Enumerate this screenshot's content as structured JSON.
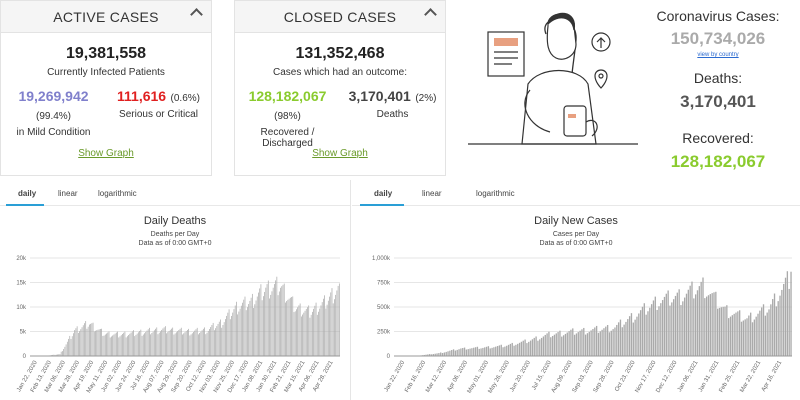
{
  "active": {
    "title": "ACTIVE CASES",
    "total": "19,381,558",
    "subtitle": "Currently Infected Patients",
    "mild": {
      "value": "19,269,942",
      "pct": "(99.4%)",
      "label": "in Mild Condition",
      "color": "#8080cc"
    },
    "serious": {
      "value": "111,616",
      "pct": "(0.6%)",
      "label": "Serious or Critical",
      "color": "#e02020"
    },
    "show_graph": "Show Graph"
  },
  "closed": {
    "title": "CLOSED CASES",
    "total": "131,352,468",
    "subtitle": "Cases which had an outcome:",
    "recovered": {
      "value": "128,182,067",
      "pct": "(98%)",
      "label": "Recovered / Discharged",
      "color": "#8acb2e"
    },
    "deaths": {
      "value": "3,170,401",
      "pct": "(2%)",
      "label": "Deaths",
      "color": "#444444"
    },
    "show_graph": "Show Graph"
  },
  "summary": {
    "cases_label": "Coronavirus Cases:",
    "cases_value": "150,734,026",
    "cases_color": "#aaaaaa",
    "view_by_country": "view by country",
    "deaths_label": "Deaths:",
    "deaths_value": "3,170,401",
    "deaths_color": "#555555",
    "recovered_label": "Recovered:",
    "recovered_value": "128,182,067",
    "recovered_color": "#8acb2e"
  },
  "tabs": {
    "daily": "daily",
    "linear": "linear",
    "logarithmic": "logarithmic"
  },
  "chart_data": [
    {
      "type": "bar",
      "title": "Daily Deaths",
      "subtitle": "Deaths per Day",
      "note": "Data as of 0:00 GMT+0",
      "ylim": [
        0,
        20000
      ],
      "yticks": [
        "0",
        "5k",
        "10k",
        "15k",
        "20k"
      ],
      "categories": [
        "Jan 22, 2020",
        "Feb 13, 2020",
        "Mar 06, 2020",
        "Mar 28, 2020",
        "Apr 19, 2020",
        "May 11, 2020",
        "Jun 02, 2020",
        "Jun 24, 2020",
        "Jul 16, 2020",
        "Aug 07, 2020",
        "Aug 29, 2020",
        "Sep 20, 2020",
        "Oct 12, 2020",
        "Nov 03, 2020",
        "Nov 25, 2020",
        "Dec 17, 2020",
        "Jan 08, 2021",
        "Jan 30, 2021",
        "Feb 21, 2021",
        "Mar 15, 2021",
        "Apr 06, 2021",
        "Apr 28, 2021"
      ],
      "values": [
        10,
        30,
        400,
        5500,
        7000,
        4800,
        4600,
        4900,
        5300,
        5700,
        5400,
        5200,
        5600,
        7200,
        10500,
        11800,
        14500,
        15200,
        10500,
        9500,
        11500,
        14800
      ],
      "bar_color": "#aaaaaa",
      "grid": true
    },
    {
      "type": "bar",
      "title": "Daily New Cases",
      "subtitle": "Cases per Day",
      "note": "Data as of 0:00 GMT+0",
      "ylim": [
        0,
        1000000
      ],
      "yticks": [
        "0",
        "250k",
        "500k",
        "750k",
        "1,000k"
      ],
      "categories": [
        "Jan 22, 2020",
        "Feb 16, 2020",
        "Mar 12, 2020",
        "Apr 06, 2020",
        "May 01, 2020",
        "May 26, 2020",
        "Jun 20, 2020",
        "Jul 15, 2020",
        "Aug 09, 2020",
        "Sep 03, 2020",
        "Sep 28, 2020",
        "Oct 23, 2020",
        "Nov 17, 2020",
        "Dec 12, 2020",
        "Jan 06, 2021",
        "Jan 31, 2021",
        "Feb 25, 2021",
        "Mar 22, 2021",
        "Apr 16, 2021"
      ],
      "values": [
        500,
        2000,
        30000,
        80000,
        90000,
        110000,
        160000,
        230000,
        260000,
        280000,
        310000,
        450000,
        600000,
        650000,
        760000,
        500000,
        400000,
        520000,
        860000
      ],
      "bar_color": "#aaaaaa",
      "grid": true
    }
  ]
}
